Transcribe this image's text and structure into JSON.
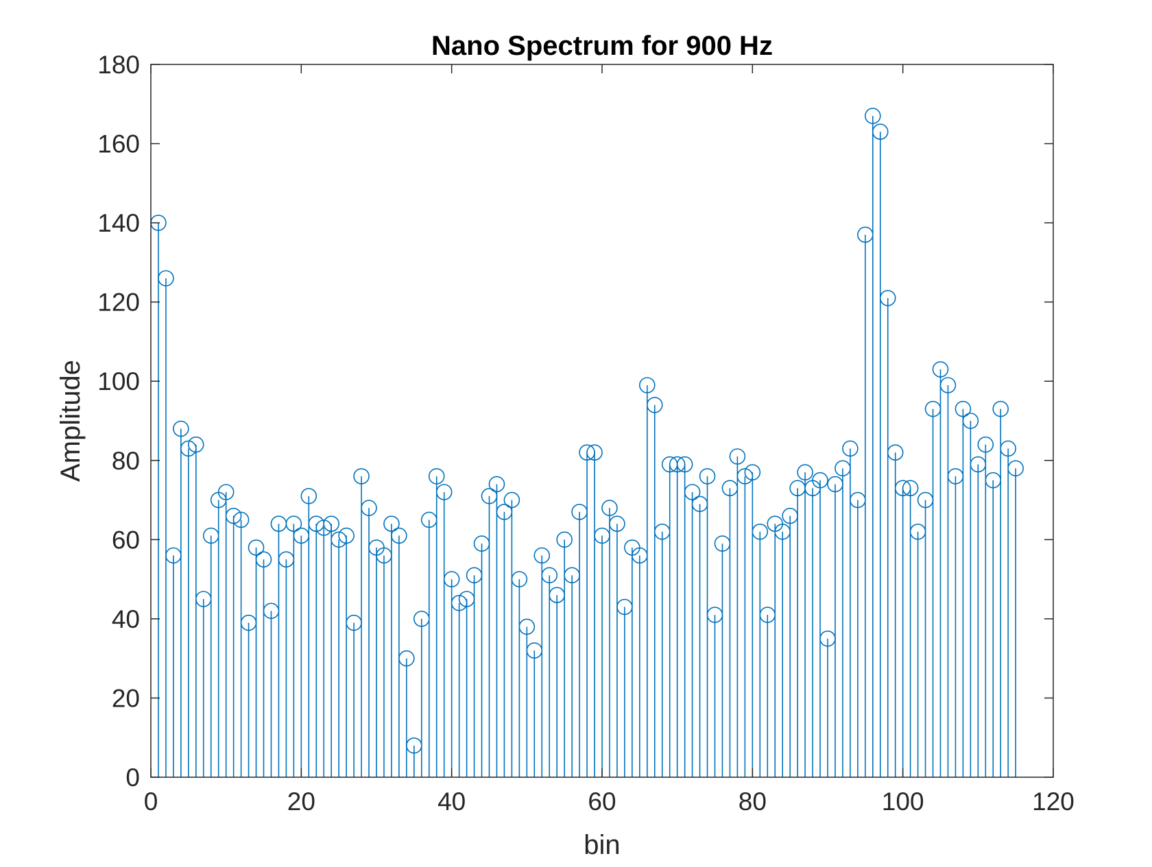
{
  "chart_data": {
    "type": "stem",
    "title": "Nano Spectrum for 900 Hz",
    "xlabel": "bin",
    "ylabel": "Amplitude",
    "xlim": [
      0,
      120
    ],
    "ylim": [
      0,
      180
    ],
    "xticks": [
      0,
      20,
      40,
      60,
      80,
      100,
      120
    ],
    "yticks": [
      0,
      20,
      40,
      60,
      80,
      100,
      120,
      140,
      160,
      180
    ],
    "grid": false,
    "color": "#0072BD",
    "series": [
      {
        "x": [
          1,
          2,
          3,
          4,
          5,
          6,
          7,
          8,
          9,
          10,
          11,
          12,
          13,
          14,
          15,
          16,
          17,
          18,
          19,
          20,
          21,
          22,
          23,
          24,
          25,
          26,
          27,
          28,
          29,
          30,
          31,
          32,
          33,
          34,
          35,
          36,
          37,
          38,
          39,
          40,
          41,
          42,
          43,
          44,
          45,
          46,
          47,
          48,
          49,
          50,
          51,
          52,
          53,
          54,
          55,
          56,
          57,
          58,
          59,
          60,
          61,
          62,
          63,
          64,
          65,
          66,
          67,
          68,
          69,
          70,
          71,
          72,
          73,
          74,
          75,
          76,
          77,
          78,
          79,
          80,
          81,
          82,
          83,
          84,
          85,
          86,
          87,
          88,
          89,
          90,
          91,
          92,
          93,
          94,
          95,
          96,
          97,
          98,
          99,
          100,
          101,
          102,
          103,
          104,
          105,
          106,
          107,
          108,
          109,
          110,
          111,
          112,
          113,
          114,
          115
        ],
        "y": [
          140,
          126,
          56,
          88,
          83,
          84,
          45,
          61,
          70,
          72,
          66,
          65,
          39,
          58,
          55,
          42,
          64,
          55,
          64,
          61,
          71,
          64,
          63,
          64,
          60,
          61,
          39,
          76,
          68,
          58,
          56,
          64,
          61,
          30,
          8,
          40,
          65,
          76,
          72,
          50,
          44,
          45,
          51,
          59,
          71,
          74,
          67,
          70,
          50,
          38,
          32,
          56,
          51,
          46,
          60,
          51,
          67,
          82,
          82,
          61,
          68,
          64,
          43,
          58,
          56,
          99,
          94,
          62,
          79,
          79,
          79,
          72,
          69,
          76,
          41,
          59,
          73,
          81,
          76,
          77,
          62,
          41,
          64,
          62,
          66,
          73,
          77,
          73,
          75,
          35,
          74,
          78,
          83,
          70,
          137,
          167,
          163,
          121,
          82,
          73,
          73,
          62,
          70,
          93,
          103,
          99,
          76,
          93,
          90,
          79,
          84,
          75,
          93,
          83,
          78
        ]
      }
    ]
  }
}
